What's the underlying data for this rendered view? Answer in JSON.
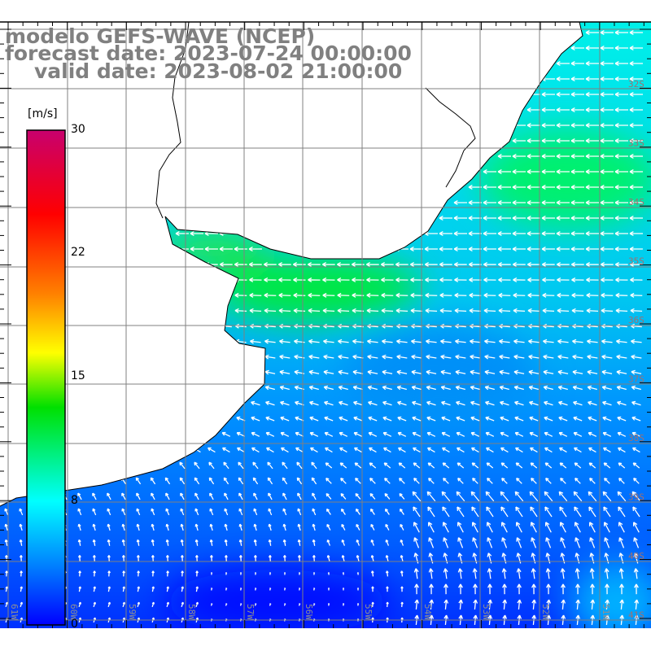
{
  "title": {
    "line1": "modelo GEFS-WAVE (NCEP)",
    "line2": "forecast date: 2023-07-24 00:00:00",
    "line3": "valid date: 2023-08-02 21:00:00"
  },
  "colorbar": {
    "unit": "[m/s]",
    "ticks": [
      "30",
      "22",
      "15",
      "8",
      "0"
    ],
    "colors": [
      "#c8006e",
      "#ff0000",
      "#ff8000",
      "#ffff00",
      "#00e000",
      "#00ffff",
      "#0080ff",
      "#0000ff"
    ]
  },
  "latitude_labels": [
    "32S",
    "33S",
    "34S",
    "35S",
    "36S",
    "37S",
    "38S",
    "39S",
    "40S",
    "41S"
  ],
  "longitude_labels": [
    "61W",
    "60W",
    "59W",
    "58W",
    "57W",
    "56W",
    "55W",
    "54W",
    "53W",
    "52W",
    "51W"
  ],
  "field": {
    "ocean_colors": {
      "green": "#00ee40",
      "cyan": "#00e0f0",
      "blue": "#0060ff",
      "deep_blue": "#0010ff"
    }
  }
}
